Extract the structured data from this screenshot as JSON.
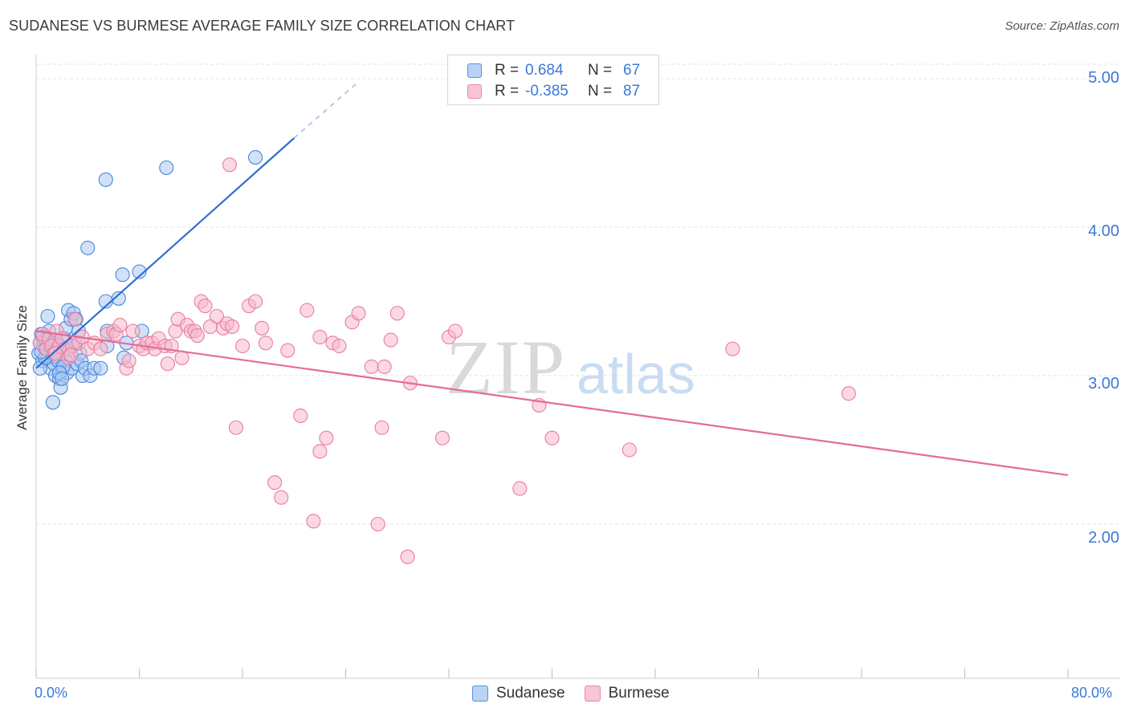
{
  "title": "SUDANESE VS BURMESE AVERAGE FAMILY SIZE CORRELATION CHART",
  "source": "Source: ZipAtlas.com",
  "watermark": {
    "zip": "ZIP",
    "atlas": "atlas"
  },
  "legend": {
    "rows": [
      {
        "r_label": "R =",
        "r_value": "0.684",
        "n_label": "N =",
        "n_value": "67"
      },
      {
        "r_label": "R =",
        "r_value": "-0.385",
        "n_label": "N =",
        "n_value": "87"
      }
    ]
  },
  "bottom_legend": [
    "Sudanese",
    "Burmese"
  ],
  "colors": {
    "sudanese_fill": "#a9c8f2",
    "sudanese_stroke": "#4a86d8",
    "sudanese_line": "#2f6fd0",
    "burmese_fill": "#f7b8cb",
    "burmese_stroke": "#e87ea0",
    "burmese_line": "#e56b96",
    "tick_label": "#3c78d8",
    "grid": "#e3e3e3"
  },
  "chart_data": {
    "type": "scatter",
    "title": "SUDANESE VS BURMESE AVERAGE FAMILY SIZE CORRELATION CHART",
    "xlabel": "",
    "ylabel": "Average Family Size",
    "xlim": [
      0,
      80
    ],
    "ylim": [
      1.0,
      5.1
    ],
    "x_tick_labels": [
      {
        "value": 0,
        "label": "0.0%"
      },
      {
        "value": 80,
        "label": "80.0%"
      }
    ],
    "y_ticks": [
      {
        "value": 2.0,
        "label": "2.00"
      },
      {
        "value": 3.0,
        "label": "3.00"
      },
      {
        "value": 4.0,
        "label": "4.00"
      },
      {
        "value": 5.0,
        "label": "5.00"
      }
    ],
    "grid": true,
    "series": [
      {
        "name": "Sudanese",
        "r": 0.684,
        "n": 67,
        "trend": {
          "x_start": 0.0,
          "y_start": 3.05,
          "x_end": 20.0,
          "y_end": 4.6,
          "dashed_to_x": 25.0,
          "dashed_to_y": 4.98
        },
        "points": [
          [
            0.2,
            3.15
          ],
          [
            0.3,
            3.22
          ],
          [
            0.4,
            3.28
          ],
          [
            0.5,
            3.1
          ],
          [
            0.6,
            3.2
          ],
          [
            0.7,
            3.18
          ],
          [
            0.8,
            3.25
          ],
          [
            0.9,
            3.12
          ],
          [
            1.0,
            3.3
          ],
          [
            1.1,
            3.05
          ],
          [
            1.2,
            3.15
          ],
          [
            1.3,
            3.22
          ],
          [
            1.4,
            3.08
          ],
          [
            1.5,
            3.0
          ],
          [
            1.6,
            3.18
          ],
          [
            1.7,
            3.12
          ],
          [
            1.8,
            2.98
          ],
          [
            1.9,
            3.2
          ],
          [
            2.0,
            3.06
          ],
          [
            2.1,
            3.15
          ],
          [
            2.2,
            3.25
          ],
          [
            2.3,
            3.1
          ],
          [
            2.4,
            3.02
          ],
          [
            2.6,
            3.18
          ],
          [
            2.8,
            3.05
          ],
          [
            3.0,
            3.22
          ],
          [
            3.2,
            3.08
          ],
          [
            3.4,
            3.15
          ],
          [
            3.6,
            3.0
          ],
          [
            0.3,
            3.05
          ],
          [
            0.5,
            3.26
          ],
          [
            0.7,
            3.12
          ],
          [
            0.9,
            3.4
          ],
          [
            1.1,
            3.2
          ],
          [
            1.3,
            3.16
          ],
          [
            1.5,
            3.24
          ],
          [
            1.7,
            3.1
          ],
          [
            1.9,
            2.92
          ],
          [
            2.1,
            3.06
          ],
          [
            2.3,
            3.32
          ],
          [
            2.5,
            3.44
          ],
          [
            2.7,
            3.38
          ],
          [
            2.9,
            3.42
          ],
          [
            3.1,
            3.38
          ],
          [
            3.3,
            3.3
          ],
          [
            3.5,
            3.1
          ],
          [
            3.8,
            3.05
          ],
          [
            4.2,
            3.0
          ],
          [
            4.5,
            3.05
          ],
          [
            5.0,
            3.05
          ],
          [
            5.5,
            3.2
          ],
          [
            6.4,
            3.52
          ],
          [
            5.5,
            3.3
          ],
          [
            5.4,
            3.5
          ],
          [
            6.8,
            3.12
          ],
          [
            7.0,
            3.22
          ],
          [
            6.7,
            3.68
          ],
          [
            8.0,
            3.7
          ],
          [
            8.2,
            3.3
          ],
          [
            4.0,
            3.86
          ],
          [
            5.4,
            4.32
          ],
          [
            10.1,
            4.4
          ],
          [
            17.0,
            4.47
          ],
          [
            1.3,
            2.82
          ],
          [
            1.8,
            3.02
          ],
          [
            0.4,
            3.16
          ],
          [
            2.0,
            2.98
          ]
        ]
      },
      {
        "name": "Burmese",
        "r": -0.385,
        "n": 87,
        "trend": {
          "x_start": 0.0,
          "y_start": 3.3,
          "x_end": 80.0,
          "y_end": 2.33
        },
        "points": [
          [
            0.3,
            3.22
          ],
          [
            0.5,
            3.28
          ],
          [
            0.8,
            3.18
          ],
          [
            1.0,
            3.25
          ],
          [
            1.2,
            3.2
          ],
          [
            1.4,
            3.15
          ],
          [
            1.6,
            3.3
          ],
          [
            1.8,
            3.2
          ],
          [
            2.0,
            3.25
          ],
          [
            2.2,
            3.18
          ],
          [
            2.5,
            3.12
          ],
          [
            2.8,
            3.2
          ],
          [
            3.0,
            3.38
          ],
          [
            3.3,
            3.22
          ],
          [
            3.6,
            3.26
          ],
          [
            4.0,
            3.18
          ],
          [
            4.5,
            3.22
          ],
          [
            5.0,
            3.18
          ],
          [
            5.5,
            3.28
          ],
          [
            6.0,
            3.3
          ],
          [
            6.2,
            3.28
          ],
          [
            6.5,
            3.34
          ],
          [
            7.0,
            3.05
          ],
          [
            7.2,
            3.1
          ],
          [
            7.5,
            3.3
          ],
          [
            8.0,
            3.2
          ],
          [
            8.3,
            3.18
          ],
          [
            8.6,
            3.22
          ],
          [
            9.0,
            3.22
          ],
          [
            9.2,
            3.18
          ],
          [
            9.5,
            3.25
          ],
          [
            10.0,
            3.2
          ],
          [
            10.2,
            3.08
          ],
          [
            10.5,
            3.2
          ],
          [
            10.8,
            3.3
          ],
          [
            11.0,
            3.38
          ],
          [
            11.3,
            3.12
          ],
          [
            11.7,
            3.34
          ],
          [
            12.0,
            3.3
          ],
          [
            12.3,
            3.3
          ],
          [
            12.5,
            3.27
          ],
          [
            12.8,
            3.5
          ],
          [
            13.1,
            3.47
          ],
          [
            13.5,
            3.33
          ],
          [
            14.0,
            3.4
          ],
          [
            14.5,
            3.32
          ],
          [
            14.8,
            3.35
          ],
          [
            15.2,
            3.33
          ],
          [
            16.0,
            3.2
          ],
          [
            16.5,
            3.47
          ],
          [
            17.0,
            3.5
          ],
          [
            17.5,
            3.32
          ],
          [
            17.8,
            3.22
          ],
          [
            19.5,
            3.17
          ],
          [
            20.5,
            2.73
          ],
          [
            21.0,
            3.44
          ],
          [
            22.0,
            3.26
          ],
          [
            23.0,
            3.22
          ],
          [
            23.5,
            3.2
          ],
          [
            24.5,
            3.36
          ],
          [
            25.0,
            3.42
          ],
          [
            26.0,
            3.06
          ],
          [
            27.0,
            3.06
          ],
          [
            27.5,
            3.24
          ],
          [
            28.0,
            3.42
          ],
          [
            29.0,
            2.95
          ],
          [
            31.5,
            2.58
          ],
          [
            32.0,
            3.26
          ],
          [
            32.5,
            3.3
          ],
          [
            39.0,
            2.8
          ],
          [
            40.0,
            2.58
          ],
          [
            46.0,
            2.5
          ],
          [
            54.0,
            3.18
          ],
          [
            63.0,
            2.88
          ],
          [
            15.5,
            2.65
          ],
          [
            18.5,
            2.28
          ],
          [
            19.0,
            2.18
          ],
          [
            21.5,
            2.02
          ],
          [
            22.0,
            2.49
          ],
          [
            22.5,
            2.58
          ],
          [
            26.5,
            2.0
          ],
          [
            26.8,
            2.65
          ],
          [
            28.8,
            1.78
          ],
          [
            37.5,
            2.24
          ],
          [
            15.0,
            4.42
          ],
          [
            1.5,
            3.15
          ],
          [
            2.7,
            3.14
          ]
        ]
      }
    ]
  }
}
